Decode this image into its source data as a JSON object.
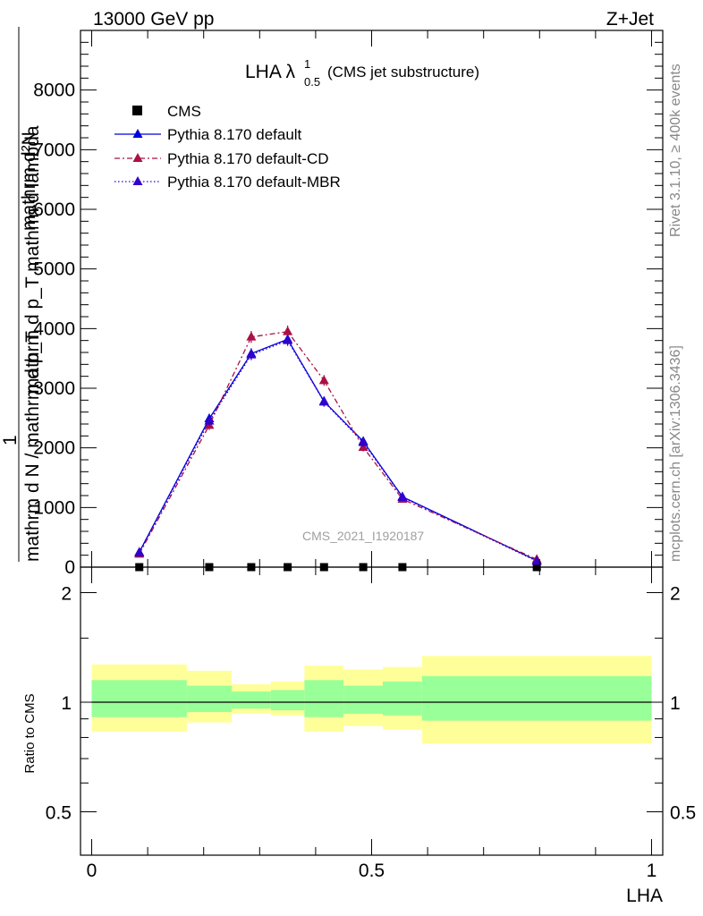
{
  "header": {
    "left": "13000 GeV pp",
    "right": "Z+Jet"
  },
  "side_texts": {
    "rivet": "Rivet 3.1.10, ≥ 400k events",
    "mcplots": "mcplots.cern.ch [arXiv:1306.3436]"
  },
  "watermark": "CMS_2021_I1920187",
  "chart_data": [
    {
      "type": "line",
      "panel": "main",
      "title": "LHA λ",
      "title_sup": "1",
      "title_sub": "0.5",
      "title_note": "(CMS jet substructure)",
      "ylabel_top": "mathrm d²N",
      "ylabel_mid": "mathrm d p_T mathrm d lambda",
      "ylabel_num": "1",
      "ylabel_den": "mathrm d N / mathrm d p_T",
      "xlim": [
        -0.02,
        1.02
      ],
      "ylim": [
        0,
        9000
      ],
      "yticks": [
        0,
        1000,
        2000,
        3000,
        4000,
        5000,
        6000,
        7000,
        8000
      ],
      "ytick_labels": [
        "0",
        "1000",
        "2000",
        "3000",
        "4000",
        "5000",
        "6000",
        "7000",
        "8000"
      ],
      "series": [
        {
          "name": "CMS",
          "style": "data",
          "color": "#000000",
          "x": [
            0.085,
            0.21,
            0.285,
            0.35,
            0.415,
            0.485,
            0.555,
            0.795
          ],
          "y": [
            0,
            0,
            0,
            0,
            0,
            0,
            0,
            0
          ]
        },
        {
          "name": "Pythia 8.170 default",
          "style": "solid",
          "color": "#0000dd",
          "x": [
            0.085,
            0.21,
            0.285,
            0.35,
            0.415,
            0.485,
            0.555,
            0.795
          ],
          "y": [
            250,
            2490,
            3580,
            3820,
            2780,
            2110,
            1180,
            110
          ],
          "err": [
            50,
            80,
            90,
            90,
            80,
            70,
            60,
            30
          ]
        },
        {
          "name": "Pythia 8.170 default-CD",
          "style": "dashdot",
          "color": "#aa1144",
          "x": [
            0.085,
            0.21,
            0.285,
            0.35,
            0.415,
            0.485,
            0.555,
            0.795
          ],
          "y": [
            220,
            2380,
            3860,
            3950,
            3130,
            2010,
            1140,
            130
          ],
          "err": [
            50,
            80,
            100,
            100,
            90,
            70,
            60,
            30
          ]
        },
        {
          "name": "Pythia 8.170 default-MBR",
          "style": "dotted",
          "color": "#3300cc",
          "x": [
            0.085,
            0.21,
            0.285,
            0.35,
            0.415,
            0.485,
            0.555,
            0.795
          ],
          "y": [
            240,
            2450,
            3560,
            3800,
            2770,
            2090,
            1170,
            100
          ],
          "err": [
            50,
            80,
            90,
            90,
            80,
            70,
            60,
            30
          ]
        }
      ]
    },
    {
      "type": "area",
      "panel": "ratio",
      "ylabel": "Ratio to CMS",
      "xlabel": "LHA",
      "xlim": [
        -0.02,
        1.02
      ],
      "xticks": [
        0,
        0.5,
        1
      ],
      "xtick_labels": [
        "0",
        "0.5",
        "1"
      ],
      "ylim": [
        0.38,
        2.35
      ],
      "ylog": true,
      "yticks": [
        0.5,
        1,
        2
      ],
      "ytick_labels": [
        "0.5",
        "1",
        "2"
      ],
      "bins": [
        {
          "lo": 0.0,
          "hi": 0.17,
          "band_outer": [
            0.83,
            1.27
          ],
          "band_inner": [
            0.91,
            1.15
          ]
        },
        {
          "lo": 0.17,
          "hi": 0.25,
          "band_outer": [
            0.88,
            1.22
          ],
          "band_inner": [
            0.94,
            1.11
          ]
        },
        {
          "lo": 0.25,
          "hi": 0.32,
          "band_outer": [
            0.93,
            1.12
          ],
          "band_inner": [
            0.96,
            1.07
          ]
        },
        {
          "lo": 0.32,
          "hi": 0.38,
          "band_outer": [
            0.92,
            1.14
          ],
          "band_inner": [
            0.95,
            1.08
          ]
        },
        {
          "lo": 0.38,
          "hi": 0.45,
          "band_outer": [
            0.83,
            1.26
          ],
          "band_inner": [
            0.91,
            1.15
          ]
        },
        {
          "lo": 0.45,
          "hi": 0.52,
          "band_outer": [
            0.86,
            1.23
          ],
          "band_inner": [
            0.93,
            1.11
          ]
        },
        {
          "lo": 0.52,
          "hi": 0.59,
          "band_outer": [
            0.84,
            1.25
          ],
          "band_inner": [
            0.92,
            1.14
          ]
        },
        {
          "lo": 0.59,
          "hi": 1.0,
          "band_outer": [
            0.77,
            1.34
          ],
          "band_inner": [
            0.89,
            1.18
          ]
        }
      ],
      "reference": 1,
      "colors": {
        "outer": "#ffff99",
        "inner": "#99ff99",
        "line": "#000000"
      }
    }
  ]
}
